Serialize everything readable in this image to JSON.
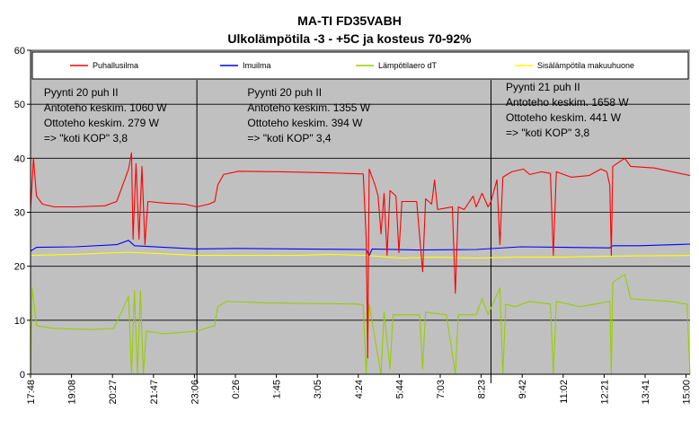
{
  "chart_data": {
    "type": "line",
    "title": "MA-TI FD35VABH",
    "subtitle": "Ulkolämpötila -3 - +5C ja kosteus 70-92%",
    "ylim": [
      0,
      60
    ],
    "yticks": [
      0,
      10,
      20,
      30,
      40,
      50,
      60
    ],
    "x_tick_labels": [
      "17:48",
      "19:08",
      "20:27",
      "21:47",
      "23:06",
      "0:26",
      "1:45",
      "3:05",
      "4:24",
      "5:44",
      "7:03",
      "8:23",
      "9:42",
      "11:02",
      "12:21",
      "13:41",
      "15:00"
    ],
    "x_range": [
      0,
      22.2
    ],
    "grid": true,
    "legend_placement": "top",
    "background_color": "#c0c0c0",
    "separators_x": [
      5.6,
      15.5
    ],
    "annotations": [
      {
        "x": 0.45,
        "y": 51.5,
        "lines": [
          "Pyynti 20 puh II",
          "Antoteho keskim. 1060 W",
          "Ottoteho keskim. 279 W",
          "=> \"koti KOP\" 3,8"
        ]
      },
      {
        "x": 7.3,
        "y": 51.5,
        "lines": [
          "Pyynti 20 puh II",
          "Antoteho keskim. 1355 W",
          "Ottoteho keskim. 394 W",
          "=> \"koti KOP\" 3,4"
        ]
      },
      {
        "x": 16.0,
        "y": 52.5,
        "lines": [
          "Pyynti 21 puh II",
          "Antoteho keskim. 1658 W",
          "Ottoteho keskim. 441 W",
          "=> \"koti KOP\" 3,8"
        ]
      }
    ],
    "series": [
      {
        "name": "Puhallusilma",
        "color": "#ff0000",
        "points": [
          [
            0,
            30.5
          ],
          [
            0.1,
            40
          ],
          [
            0.2,
            33
          ],
          [
            0.4,
            31.5
          ],
          [
            0.8,
            31
          ],
          [
            1.5,
            31
          ],
          [
            2.5,
            31.2
          ],
          [
            2.9,
            32
          ],
          [
            3.1,
            35
          ],
          [
            3.3,
            38
          ],
          [
            3.4,
            41
          ],
          [
            3.45,
            25
          ],
          [
            3.55,
            39
          ],
          [
            3.65,
            25
          ],
          [
            3.75,
            38.5
          ],
          [
            3.85,
            24
          ],
          [
            3.95,
            32
          ],
          [
            4.5,
            31.7
          ],
          [
            5.2,
            31.5
          ],
          [
            5.6,
            31
          ],
          [
            6.0,
            31.5
          ],
          [
            6.2,
            32
          ],
          [
            6.3,
            35
          ],
          [
            6.5,
            37
          ],
          [
            7.0,
            37.6
          ],
          [
            8.5,
            37.5
          ],
          [
            10.0,
            37.3
          ],
          [
            11.2,
            37.1
          ],
          [
            11.3,
            25
          ],
          [
            11.35,
            3
          ],
          [
            11.4,
            38
          ],
          [
            11.6,
            35
          ],
          [
            11.7,
            33
          ],
          [
            11.8,
            26
          ],
          [
            11.9,
            33.5
          ],
          [
            12.0,
            22
          ],
          [
            12.1,
            34
          ],
          [
            12.3,
            33
          ],
          [
            12.4,
            22.5
          ],
          [
            12.5,
            32
          ],
          [
            13.0,
            32
          ],
          [
            13.2,
            19
          ],
          [
            13.3,
            32.5
          ],
          [
            13.5,
            31.5
          ],
          [
            13.6,
            36
          ],
          [
            13.7,
            30.5
          ],
          [
            14.0,
            30.8
          ],
          [
            14.2,
            31
          ],
          [
            14.3,
            15
          ],
          [
            14.4,
            31
          ],
          [
            14.6,
            30.5
          ],
          [
            14.9,
            33
          ],
          [
            15.0,
            31
          ],
          [
            15.2,
            33.5
          ],
          [
            15.4,
            31
          ],
          [
            15.5,
            32
          ],
          [
            15.7,
            36
          ],
          [
            15.8,
            24
          ],
          [
            15.9,
            36.5
          ],
          [
            16.2,
            37.5
          ],
          [
            16.6,
            38
          ],
          [
            16.8,
            37
          ],
          [
            17.2,
            37.5
          ],
          [
            17.5,
            37.2
          ],
          [
            17.6,
            22
          ],
          [
            17.7,
            37.5
          ],
          [
            18.2,
            36.5
          ],
          [
            18.8,
            36.8
          ],
          [
            19.2,
            38
          ],
          [
            19.4,
            37.5
          ],
          [
            19.5,
            35
          ],
          [
            19.55,
            22
          ],
          [
            19.6,
            38.5
          ],
          [
            20.0,
            40
          ],
          [
            20.2,
            38.5
          ],
          [
            21.0,
            38.2
          ],
          [
            22.2,
            36.8
          ]
        ]
      },
      {
        "name": "Imuilma",
        "color": "#0000ff",
        "points": [
          [
            0,
            22.8
          ],
          [
            0.2,
            23.5
          ],
          [
            1.5,
            23.6
          ],
          [
            2.9,
            24
          ],
          [
            3.3,
            24.8
          ],
          [
            3.5,
            23.8
          ],
          [
            4.5,
            23.5
          ],
          [
            5.6,
            23.2
          ],
          [
            7.0,
            23.3
          ],
          [
            9.0,
            23.2
          ],
          [
            11.3,
            23.1
          ],
          [
            11.4,
            22
          ],
          [
            11.5,
            23.2
          ],
          [
            13.0,
            23
          ],
          [
            15.0,
            23.1
          ],
          [
            16.5,
            23.6
          ],
          [
            18.0,
            23.5
          ],
          [
            19.5,
            23.4
          ],
          [
            19.6,
            23.8
          ],
          [
            20.5,
            23.8
          ],
          [
            22.2,
            24.1
          ]
        ]
      },
      {
        "name": "Lämpötilaero dT",
        "color": "#99cc00",
        "points": [
          [
            0,
            0
          ],
          [
            0.05,
            16
          ],
          [
            0.2,
            9
          ],
          [
            0.8,
            8.5
          ],
          [
            2.0,
            8.3
          ],
          [
            2.8,
            8.5
          ],
          [
            3.1,
            12
          ],
          [
            3.3,
            14.5
          ],
          [
            3.4,
            0
          ],
          [
            3.5,
            15.5
          ],
          [
            3.6,
            0
          ],
          [
            3.7,
            15.5
          ],
          [
            3.8,
            0
          ],
          [
            3.9,
            8
          ],
          [
            4.5,
            7.5
          ],
          [
            5.6,
            8
          ],
          [
            6.2,
            9
          ],
          [
            6.3,
            12.5
          ],
          [
            6.6,
            13.5
          ],
          [
            8.0,
            13.2
          ],
          [
            11.0,
            13
          ],
          [
            11.2,
            12.8
          ],
          [
            11.3,
            0
          ],
          [
            11.4,
            13
          ],
          [
            11.8,
            0
          ],
          [
            11.9,
            11.5
          ],
          [
            12.1,
            1
          ],
          [
            12.2,
            11
          ],
          [
            13.1,
            11
          ],
          [
            13.2,
            1
          ],
          [
            13.3,
            11.5
          ],
          [
            14.0,
            11
          ],
          [
            14.3,
            0
          ],
          [
            14.4,
            11
          ],
          [
            15.0,
            11
          ],
          [
            15.2,
            14
          ],
          [
            15.4,
            11
          ],
          [
            15.8,
            16
          ],
          [
            15.9,
            0
          ],
          [
            16.0,
            13
          ],
          [
            16.3,
            12.5
          ],
          [
            16.8,
            13.5
          ],
          [
            17.5,
            13
          ],
          [
            17.6,
            0
          ],
          [
            17.7,
            13.5
          ],
          [
            18.5,
            12.5
          ],
          [
            19.5,
            13.5
          ],
          [
            19.55,
            0
          ],
          [
            19.6,
            17
          ],
          [
            20.0,
            18.5
          ],
          [
            20.2,
            14
          ],
          [
            21.5,
            13.5
          ],
          [
            22.1,
            13
          ],
          [
            22.2,
            0
          ]
        ]
      },
      {
        "name": "Sisälämpötila makuuhuone",
        "color": "#ffff00",
        "points": [
          [
            0,
            22
          ],
          [
            1.5,
            22.2
          ],
          [
            3.3,
            22.6
          ],
          [
            4.5,
            22.3
          ],
          [
            5.6,
            22
          ],
          [
            7.0,
            22
          ],
          [
            9.0,
            22
          ],
          [
            10.0,
            22.2
          ],
          [
            11.3,
            22
          ],
          [
            12.5,
            21.5
          ],
          [
            13.5,
            21.7
          ],
          [
            15.0,
            21.5
          ],
          [
            16.5,
            21.7
          ],
          [
            18.0,
            21.7
          ],
          [
            20.0,
            21.9
          ],
          [
            22.2,
            22
          ]
        ]
      }
    ]
  }
}
